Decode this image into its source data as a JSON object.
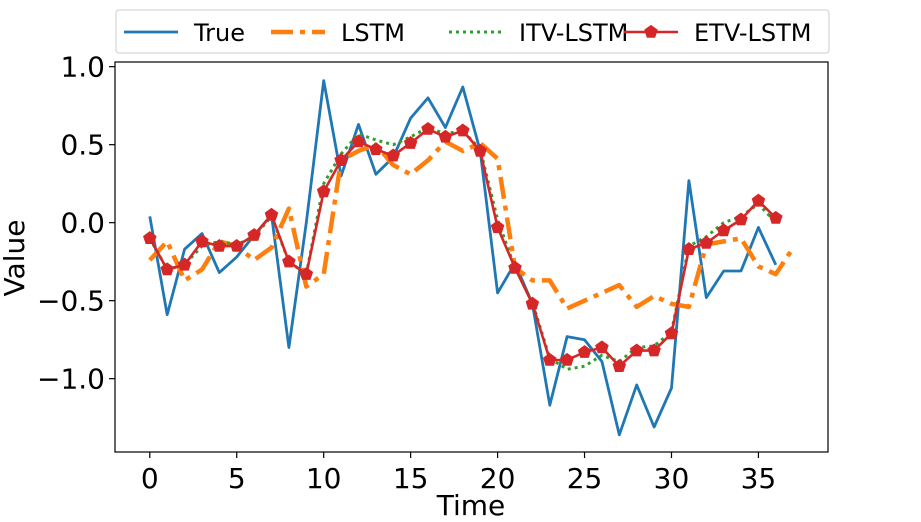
{
  "chart_data": {
    "type": "line",
    "xlabel": "Time",
    "ylabel": "Value",
    "xlim": [
      -2,
      39
    ],
    "ylim": [
      -1.47,
      1.03
    ],
    "xticks": [
      0,
      5,
      10,
      15,
      20,
      25,
      30,
      35
    ],
    "yticks": [
      1.0,
      0.5,
      0.0,
      -0.5,
      -1.0
    ],
    "ytick_labels": [
      "1.0",
      "0.5",
      "0.0",
      "−0.5",
      "−1.0"
    ],
    "grid": false,
    "legend_position": "top",
    "x": [
      0,
      1,
      2,
      3,
      4,
      5,
      6,
      7,
      8,
      9,
      10,
      11,
      12,
      13,
      14,
      15,
      16,
      17,
      18,
      19,
      20,
      21,
      22,
      23,
      24,
      25,
      26,
      27,
      28,
      29,
      30,
      31,
      32,
      33,
      34,
      35,
      36,
      37
    ],
    "series": [
      {
        "name": "True",
        "color": "#1f77b4",
        "style": "solid",
        "values": [
          0.04,
          -0.59,
          -0.17,
          -0.07,
          -0.32,
          -0.22,
          -0.08,
          0.05,
          -0.8,
          0.0,
          0.91,
          0.3,
          0.63,
          0.31,
          0.42,
          0.67,
          0.8,
          0.61,
          0.87,
          0.46,
          -0.45,
          -0.26,
          -0.52,
          -1.17,
          -0.73,
          -0.75,
          -0.89,
          -1.36,
          -1.04,
          -1.31,
          -1.06,
          0.27,
          -0.48,
          -0.31,
          -0.31,
          -0.03,
          -0.27,
          null
        ]
      },
      {
        "name": "LSTM",
        "color": "#ff7f0e",
        "style": "dashdot",
        "values": [
          -0.24,
          -0.12,
          -0.37,
          -0.3,
          -0.12,
          -0.15,
          -0.24,
          -0.16,
          0.09,
          -0.41,
          -0.33,
          0.4,
          0.46,
          0.5,
          0.37,
          0.31,
          0.4,
          0.52,
          0.46,
          0.51,
          0.41,
          -0.29,
          -0.37,
          -0.37,
          -0.55,
          -0.5,
          -0.45,
          -0.4,
          -0.54,
          -0.47,
          -0.52,
          -0.54,
          -0.14,
          -0.12,
          -0.1,
          -0.28,
          -0.33,
          -0.16
        ]
      },
      {
        "name": "ITV-LSTM",
        "color": "#2ca02c",
        "style": "dotted",
        "values": [
          -0.1,
          -0.3,
          -0.27,
          -0.15,
          -0.12,
          -0.14,
          -0.09,
          0.04,
          -0.25,
          -0.33,
          0.25,
          0.44,
          0.57,
          0.53,
          0.5,
          0.55,
          0.61,
          0.57,
          0.59,
          0.47,
          0.02,
          -0.29,
          -0.51,
          -0.87,
          -0.94,
          -0.92,
          -0.85,
          -0.89,
          -0.8,
          -0.79,
          -0.7,
          -0.15,
          -0.09,
          0.0,
          0.04,
          0.12,
          0.0,
          null
        ]
      },
      {
        "name": "ETV-LSTM",
        "color": "#d62728",
        "style": "solid-markers",
        "values": [
          -0.1,
          -0.3,
          -0.27,
          -0.12,
          -0.15,
          -0.15,
          -0.08,
          0.05,
          -0.25,
          -0.33,
          0.2,
          0.4,
          0.52,
          0.47,
          0.43,
          0.51,
          0.6,
          0.55,
          0.59,
          0.46,
          -0.03,
          -0.29,
          -0.52,
          -0.88,
          -0.88,
          -0.83,
          -0.8,
          -0.92,
          -0.82,
          -0.82,
          -0.71,
          -0.17,
          -0.13,
          -0.05,
          0.02,
          0.14,
          0.03,
          null
        ]
      }
    ]
  }
}
